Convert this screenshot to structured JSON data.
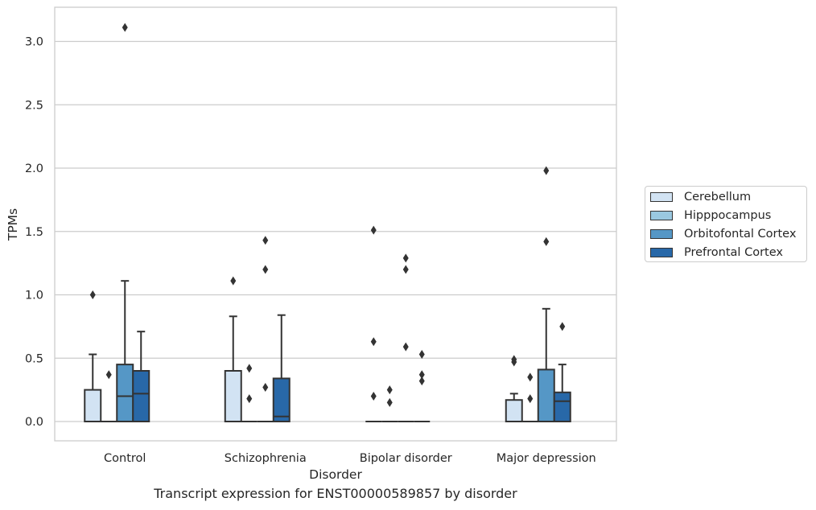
{
  "chart_data": {
    "type": "box",
    "xlabel": "Disorder",
    "ylabel": "TPMs",
    "caption": "Transcript expression for ENST00000589857 by disorder",
    "ylim": [
      -0.15,
      3.25
    ],
    "yticks": [
      "0.0",
      "0.5",
      "1.0",
      "1.5",
      "2.0",
      "2.5",
      "3.0"
    ],
    "grid": "horizontal",
    "legend_position": "right",
    "categories": [
      "Control",
      "Schizophrenia",
      "Bipolar disorder",
      "Major depression"
    ],
    "series": [
      {
        "name": "Cerebellum",
        "color": "#d2e3f3",
        "boxes": [
          {
            "low": 0.0,
            "q1": 0.0,
            "median": 0.0,
            "q3": 0.25,
            "high": 0.53,
            "outliers": [
              1.0
            ]
          },
          {
            "low": 0.0,
            "q1": 0.0,
            "median": 0.0,
            "q3": 0.4,
            "high": 0.83,
            "outliers": [
              1.11
            ]
          },
          {
            "low": 0.0,
            "q1": 0.0,
            "median": 0.0,
            "q3": 0.0,
            "high": 0.0,
            "outliers": [
              0.2,
              0.63,
              1.51
            ]
          },
          {
            "low": 0.0,
            "q1": 0.0,
            "median": 0.0,
            "q3": 0.17,
            "high": 0.22,
            "outliers": [
              0.47,
              0.49
            ]
          }
        ]
      },
      {
        "name": "Hipppocampus",
        "color": "#9ac8e0",
        "boxes": [
          {
            "low": 0.0,
            "q1": 0.0,
            "median": 0.0,
            "q3": 0.0,
            "high": 0.0,
            "outliers": [
              0.37
            ]
          },
          {
            "low": 0.0,
            "q1": 0.0,
            "median": 0.0,
            "q3": 0.0,
            "high": 0.0,
            "outliers": [
              0.18,
              0.42
            ]
          },
          {
            "low": 0.0,
            "q1": 0.0,
            "median": 0.0,
            "q3": 0.0,
            "high": 0.0,
            "outliers": [
              0.15,
              0.25
            ]
          },
          {
            "low": 0.0,
            "q1": 0.0,
            "median": 0.0,
            "q3": 0.0,
            "high": 0.0,
            "outliers": [
              0.18,
              0.35
            ]
          }
        ]
      },
      {
        "name": "Orbitofontal Cortex",
        "color": "#5597c6",
        "boxes": [
          {
            "low": 0.0,
            "q1": 0.0,
            "median": 0.2,
            "q3": 0.45,
            "high": 1.11,
            "outliers": [
              3.11
            ]
          },
          {
            "low": 0.0,
            "q1": 0.0,
            "median": 0.0,
            "q3": 0.0,
            "high": 0.0,
            "outliers": [
              0.27,
              1.2,
              1.43
            ]
          },
          {
            "low": 0.0,
            "q1": 0.0,
            "median": 0.0,
            "q3": 0.0,
            "high": 0.0,
            "outliers": [
              0.59,
              1.2,
              1.29
            ]
          },
          {
            "low": 0.0,
            "q1": 0.0,
            "median": 0.0,
            "q3": 0.41,
            "high": 0.89,
            "outliers": [
              1.42,
              1.98
            ]
          }
        ]
      },
      {
        "name": "Prefrontal Cortex",
        "color": "#2868a8",
        "boxes": [
          {
            "low": 0.0,
            "q1": 0.0,
            "median": 0.22,
            "q3": 0.4,
            "high": 0.71,
            "outliers": []
          },
          {
            "low": 0.0,
            "q1": 0.0,
            "median": 0.04,
            "q3": 0.34,
            "high": 0.84,
            "outliers": []
          },
          {
            "low": 0.0,
            "q1": 0.0,
            "median": 0.0,
            "q3": 0.0,
            "high": 0.0,
            "outliers": [
              0.32,
              0.37,
              0.53
            ]
          },
          {
            "low": 0.0,
            "q1": 0.0,
            "median": 0.16,
            "q3": 0.23,
            "high": 0.45,
            "outliers": [
              0.75
            ]
          }
        ]
      }
    ]
  }
}
